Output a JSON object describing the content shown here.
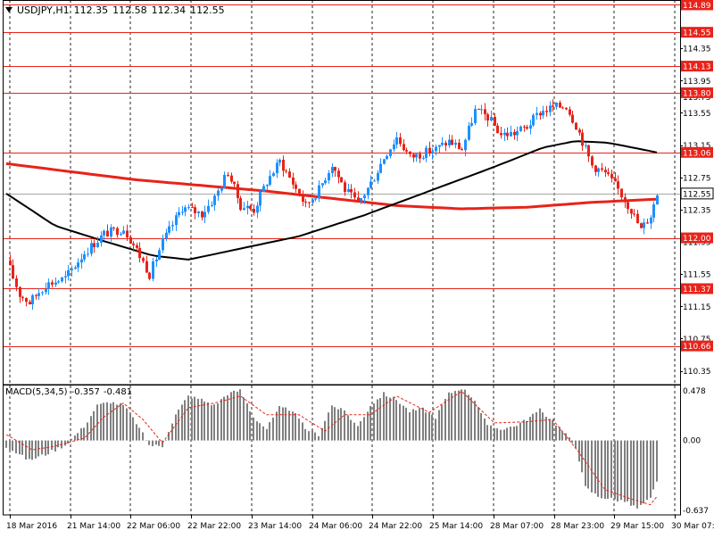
{
  "header": {
    "symbol": "USDJPY,H1",
    "open": "112.35",
    "high": "112.58",
    "low": "112.34",
    "close": "112.55"
  },
  "macd_header": {
    "label": "MACD(5,34,5)",
    "value_main": "-0.357",
    "value_signal": "-0.481"
  },
  "colors": {
    "bull": "#1E90FF",
    "bear": "#E8231A",
    "level_line": "#E8231A",
    "ma_slow": "#E8231A",
    "ma_fast": "#000000",
    "macd_hist": "#808080",
    "macd_signal": "#E8231A",
    "current_price_bg": "#ffffff"
  },
  "chart_data": [
    {
      "type": "candlestick",
      "name": "USDJPY,H1",
      "ylim": [
        110.18,
        114.95
      ],
      "y_ticks": [
        "114.55",
        "114.35",
        "113.95",
        "113.75",
        "113.55",
        "113.15",
        "112.75",
        "112.55",
        "112.35",
        "111.95",
        "111.55",
        "111.37",
        "111.15",
        "110.75",
        "110.66",
        "110.35"
      ],
      "x_labels": [
        "18 Mar 2016",
        "21 Mar 14:00",
        "22 Mar 06:00",
        "22 Mar 22:00",
        "23 Mar 14:00",
        "24 Mar 06:00",
        "24 Mar 22:00",
        "25 Mar 14:00",
        "28 Mar 07:00",
        "28 Mar 23:00",
        "29 Mar 15:00",
        "30 Mar 07:00"
      ],
      "levels": [
        {
          "label": "114.89",
          "value": 114.89
        },
        {
          "label": "114.55",
          "value": 114.55
        },
        {
          "label": "114.13",
          "value": 114.13
        },
        {
          "label": "113.80",
          "value": 113.8
        },
        {
          "label": "113.06",
          "value": 113.06
        },
        {
          "label": "112.00",
          "value": 112.0
        },
        {
          "label": "111.37",
          "value": 111.37
        },
        {
          "label": "110.66",
          "value": 110.66
        }
      ],
      "current_price": {
        "label": "112.55",
        "value": 112.55
      },
      "price_path": [
        [
          0,
          111.72
        ],
        [
          4,
          111.3
        ],
        [
          7,
          111.2
        ],
        [
          12,
          111.42
        ],
        [
          18,
          111.5
        ],
        [
          24,
          111.82
        ],
        [
          30,
          112.05
        ],
        [
          36,
          112.12
        ],
        [
          40,
          111.85
        ],
        [
          44,
          111.55
        ],
        [
          48,
          111.95
        ],
        [
          54,
          112.38
        ],
        [
          60,
          112.3
        ],
        [
          64,
          112.5
        ],
        [
          68,
          112.82
        ],
        [
          72,
          112.4
        ],
        [
          76,
          112.35
        ],
        [
          80,
          112.7
        ],
        [
          84,
          112.95
        ],
        [
          88,
          112.68
        ],
        [
          92,
          112.4
        ],
        [
          96,
          112.6
        ],
        [
          100,
          112.92
        ],
        [
          104,
          112.6
        ],
        [
          108,
          112.42
        ],
        [
          112,
          112.68
        ],
        [
          116,
          113.0
        ],
        [
          120,
          113.25
        ],
        [
          124,
          113.0
        ],
        [
          128,
          113.05
        ],
        [
          132,
          113.1
        ],
        [
          136,
          113.2
        ],
        [
          140,
          113.1
        ],
        [
          144,
          113.58
        ],
        [
          148,
          113.5
        ],
        [
          152,
          113.28
        ],
        [
          156,
          113.3
        ],
        [
          160,
          113.38
        ],
        [
          164,
          113.56
        ],
        [
          168,
          113.62
        ],
        [
          172,
          113.64
        ],
        [
          175,
          113.4
        ],
        [
          180,
          112.9
        ],
        [
          184,
          112.8
        ],
        [
          188,
          112.6
        ],
        [
          192,
          112.35
        ],
        [
          195,
          112.1
        ],
        [
          198,
          112.28
        ],
        [
          200,
          112.55
        ]
      ],
      "ma_slow": [
        [
          0,
          112.92
        ],
        [
          40,
          112.72
        ],
        [
          80,
          112.58
        ],
        [
          120,
          112.4
        ],
        [
          140,
          112.36
        ],
        [
          160,
          112.38
        ],
        [
          180,
          112.44
        ],
        [
          200,
          112.48
        ]
      ],
      "ma_fast": [
        [
          0,
          112.55
        ],
        [
          15,
          112.15
        ],
        [
          30,
          111.96
        ],
        [
          45,
          111.78
        ],
        [
          56,
          111.73
        ],
        [
          70,
          111.85
        ],
        [
          90,
          112.02
        ],
        [
          110,
          112.28
        ],
        [
          130,
          112.58
        ],
        [
          150,
          112.88
        ],
        [
          165,
          113.12
        ],
        [
          175,
          113.2
        ],
        [
          185,
          113.18
        ],
        [
          200,
          113.06
        ]
      ]
    },
    {
      "type": "bar",
      "name": "MACD(5,34,5)",
      "ylim": [
        -0.637,
        0.478
      ],
      "y_ticks": [
        "0.478",
        "0.00",
        "-0.637"
      ],
      "histogram_path": [
        [
          0,
          -0.05
        ],
        [
          4,
          -0.12
        ],
        [
          7,
          -0.17
        ],
        [
          12,
          -0.12
        ],
        [
          18,
          -0.04
        ],
        [
          24,
          0.12
        ],
        [
          28,
          0.3
        ],
        [
          32,
          0.33
        ],
        [
          36,
          0.3
        ],
        [
          40,
          0.15
        ],
        [
          44,
          -0.04
        ],
        [
          48,
          -0.05
        ],
        [
          52,
          0.22
        ],
        [
          56,
          0.38
        ],
        [
          60,
          0.35
        ],
        [
          64,
          0.3
        ],
        [
          68,
          0.4
        ],
        [
          72,
          0.43
        ],
        [
          76,
          0.2
        ],
        [
          80,
          0.1
        ],
        [
          84,
          0.28
        ],
        [
          88,
          0.26
        ],
        [
          92,
          0.1
        ],
        [
          96,
          0.05
        ],
        [
          100,
          0.3
        ],
        [
          104,
          0.25
        ],
        [
          108,
          0.12
        ],
        [
          112,
          0.3
        ],
        [
          116,
          0.4
        ],
        [
          120,
          0.35
        ],
        [
          124,
          0.25
        ],
        [
          128,
          0.27
        ],
        [
          132,
          0.2
        ],
        [
          136,
          0.4
        ],
        [
          140,
          0.45
        ],
        [
          144,
          0.35
        ],
        [
          148,
          0.12
        ],
        [
          152,
          0.1
        ],
        [
          156,
          0.12
        ],
        [
          160,
          0.18
        ],
        [
          164,
          0.26
        ],
        [
          168,
          0.17
        ],
        [
          172,
          0.05
        ],
        [
          175,
          -0.05
        ],
        [
          178,
          -0.4
        ],
        [
          182,
          -0.48
        ],
        [
          186,
          -0.5
        ],
        [
          190,
          -0.52
        ],
        [
          194,
          -0.58
        ],
        [
          198,
          -0.5
        ],
        [
          200,
          -0.36
        ]
      ],
      "signal_path": [
        [
          0,
          0.05
        ],
        [
          8,
          -0.08
        ],
        [
          15,
          -0.05
        ],
        [
          24,
          0.02
        ],
        [
          30,
          0.2
        ],
        [
          36,
          0.32
        ],
        [
          42,
          0.18
        ],
        [
          48,
          -0.02
        ],
        [
          56,
          0.28
        ],
        [
          64,
          0.32
        ],
        [
          72,
          0.38
        ],
        [
          80,
          0.22
        ],
        [
          90,
          0.22
        ],
        [
          98,
          0.08
        ],
        [
          104,
          0.22
        ],
        [
          112,
          0.22
        ],
        [
          120,
          0.38
        ],
        [
          130,
          0.24
        ],
        [
          140,
          0.42
        ],
        [
          150,
          0.15
        ],
        [
          160,
          0.16
        ],
        [
          168,
          0.18
        ],
        [
          176,
          -0.1
        ],
        [
          184,
          -0.42
        ],
        [
          192,
          -0.5
        ],
        [
          198,
          -0.55
        ],
        [
          200,
          -0.48
        ]
      ]
    }
  ]
}
